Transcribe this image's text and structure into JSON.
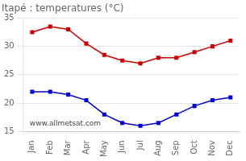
{
  "chart_data": {
    "type": "line",
    "title": "Itapé : temperatures (°C)",
    "categories": [
      "Jan",
      "Feb",
      "Mar",
      "Apr",
      "May",
      "Jun",
      "Jul",
      "Aug",
      "Sep",
      "Oct",
      "Nov",
      "Dec"
    ],
    "series": [
      {
        "color": "#cc0000",
        "values": [
          32.5,
          33.5,
          33.0,
          30.5,
          28.5,
          27.5,
          27.0,
          28.0,
          28.0,
          29.0,
          30.0,
          31.0
        ]
      },
      {
        "color": "#0000cc",
        "values": [
          22.0,
          22.0,
          21.5,
          20.5,
          18.0,
          16.5,
          16.0,
          16.5,
          18.0,
          19.5,
          20.5,
          21.0
        ]
      }
    ],
    "marker": "square",
    "ylim": [
      15,
      35
    ],
    "yticks": [
      15,
      20,
      25,
      30,
      35
    ],
    "grid": "y",
    "annotations": [
      "www.allmetsat.com"
    ]
  }
}
